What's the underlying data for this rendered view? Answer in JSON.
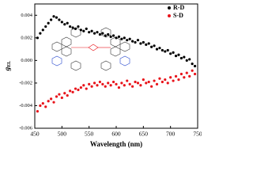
{
  "chart_data": {
    "type": "scatter",
    "x_label": "Wavelength (nm)",
    "y_label_main": "g",
    "y_label_sub": "EL",
    "x": [
      455,
      460,
      465,
      470,
      475,
      480,
      485,
      490,
      495,
      500,
      505,
      510,
      515,
      520,
      525,
      530,
      535,
      540,
      545,
      550,
      555,
      560,
      565,
      570,
      575,
      580,
      585,
      590,
      595,
      600,
      605,
      610,
      615,
      620,
      625,
      630,
      635,
      640,
      645,
      650,
      655,
      660,
      665,
      670,
      675,
      680,
      685,
      690,
      695,
      700,
      705,
      710,
      715,
      720,
      725,
      730,
      735,
      740,
      745
    ],
    "series": [
      {
        "name": "R-D",
        "color": "#000000",
        "values": [
          0.002,
          0.0024,
          0.0027,
          0.003,
          0.0033,
          0.0036,
          0.0039,
          0.0038,
          0.0036,
          0.0034,
          0.0032,
          0.0033,
          0.003,
          0.0029,
          0.0028,
          0.003,
          0.0027,
          0.0026,
          0.0028,
          0.0025,
          0.0026,
          0.0024,
          0.0025,
          0.0023,
          0.0024,
          0.0022,
          0.0023,
          0.0021,
          0.0022,
          0.002,
          0.0021,
          0.0019,
          0.002,
          0.0018,
          0.0019,
          0.0017,
          0.0016,
          0.0018,
          0.0015,
          0.0016,
          0.0014,
          0.0015,
          0.0012,
          0.0013,
          0.001,
          0.0011,
          0.0009,
          0.0008,
          0.0009,
          0.0006,
          0.0007,
          0.0004,
          0.0005,
          0.0002,
          0.0003,
          0.0,
          0.0001,
          -0.0003,
          -0.0005
        ]
      },
      {
        "name": "S-D",
        "color": "#e8141b",
        "values": [
          -0.0045,
          -0.004,
          -0.0038,
          -0.0041,
          -0.0036,
          -0.0034,
          -0.0037,
          -0.0032,
          -0.003,
          -0.0033,
          -0.0029,
          -0.0031,
          -0.0027,
          -0.0028,
          -0.0025,
          -0.0026,
          -0.0024,
          -0.0022,
          -0.0025,
          -0.0021,
          -0.0023,
          -0.002,
          -0.0022,
          -0.0019,
          -0.0021,
          -0.0023,
          -0.002,
          -0.0022,
          -0.0019,
          -0.0021,
          -0.0024,
          -0.002,
          -0.0022,
          -0.0018,
          -0.0021,
          -0.0023,
          -0.0019,
          -0.002,
          -0.0022,
          -0.0017,
          -0.002,
          -0.0019,
          -0.0023,
          -0.0018,
          -0.0021,
          -0.0016,
          -0.0019,
          -0.0017,
          -0.002,
          -0.0015,
          -0.0018,
          -0.0014,
          -0.0017,
          -0.0012,
          -0.0015,
          -0.0011,
          -0.0014,
          -0.0009,
          -0.0012
        ]
      }
    ],
    "xlim": [
      450,
      750
    ],
    "xticks": [
      450,
      500,
      550,
      600,
      650,
      700,
      750
    ],
    "ylim": [
      -0.006,
      0.005
    ],
    "yticks": [
      -0.006,
      -0.004,
      -0.002,
      {
        "value": 0,
        "label": "0.000"
      },
      0.002,
      0.004
    ],
    "legend": "top-right"
  }
}
